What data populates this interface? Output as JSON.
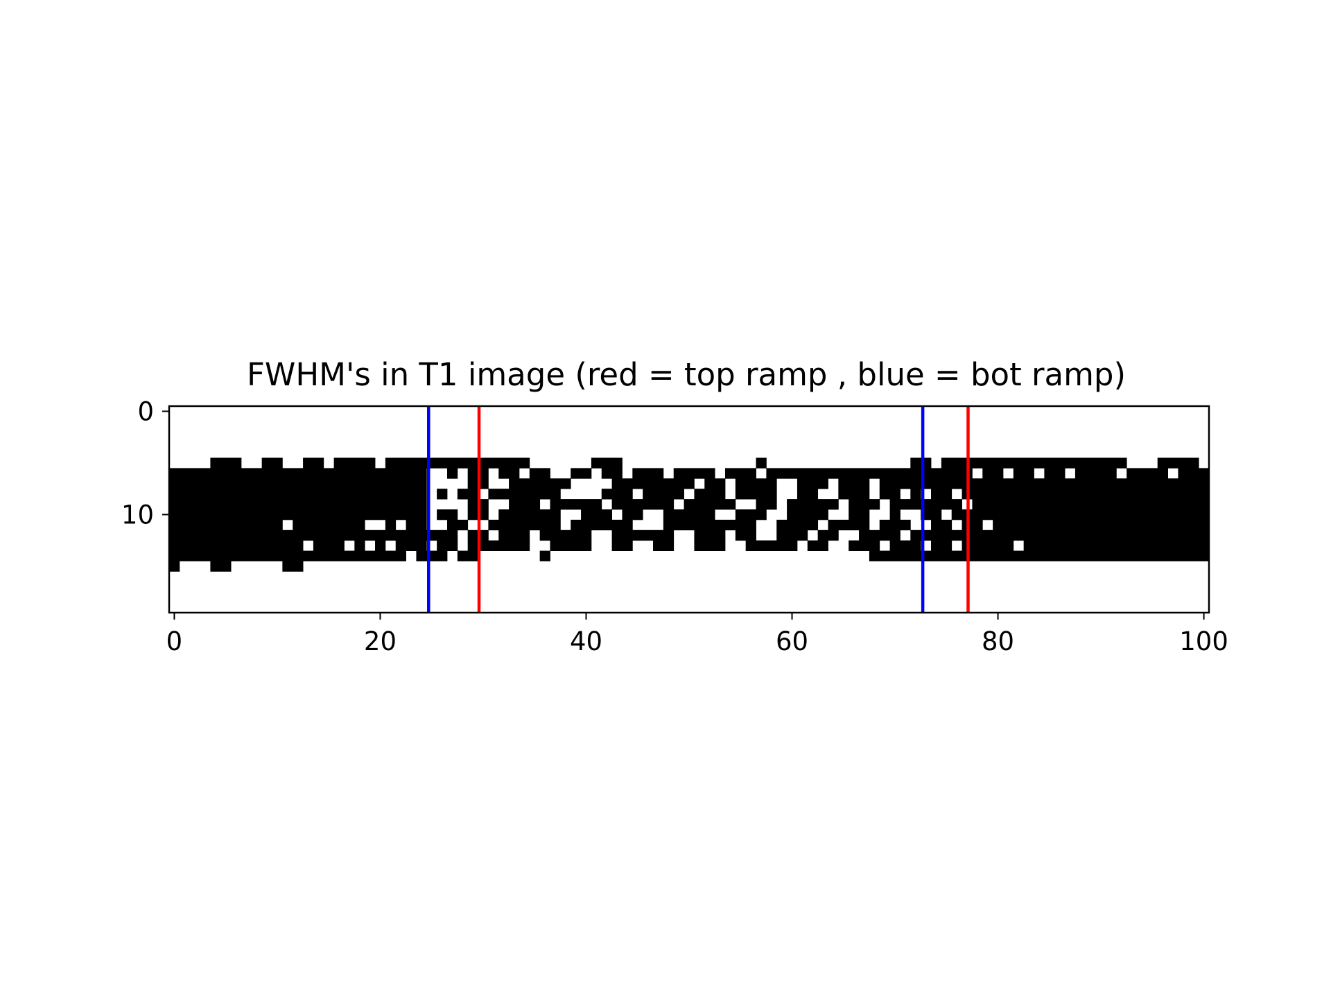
{
  "chart_data": {
    "type": "heatmap",
    "title": "FWHM's in T1 image (red = top ramp , blue = bot ramp)",
    "xlabel": "",
    "ylabel": "",
    "colormap": "binary (black = 1, white = 0)",
    "xlim": [
      -0.5,
      100.5
    ],
    "ylim": [
      19.5,
      -0.5
    ],
    "grid": false,
    "xticks": [
      0,
      20,
      40,
      60,
      80,
      100
    ],
    "yticks": [
      0,
      10
    ],
    "rows": [
      "",
      "",
      "",
      "",
      "",
      "4-6,9-10,13-14,16-19,21-34,41-43,57,72-73,75-92,96-99",
      "0-24,27,29-30,32-33,35-36,39-40,42-43,45-47,49-52,54-56,58-77,79-80,82-83,85-86,88-91,93-96,98-100",
      "0-24,29-30,33-38,43-50,52-53,55-58,61-63,65-67,69-100",
      "0-24,26,28-29,31-37,42-44,46-49,51-53,55-58,61-62,65-67,69-70,72,74-75,77-100",
      "0-24,29-30,33-35,37-41,43-48,50-54,57-58,60-64,66-68,70-76,78-100",
      "0-24,26-27,29-30,32-37,40-42,44-45,48-52,55-57,60-63,66-67,70,73-74,76-100",
      "0-10,12-18,21,23-24,27-28,31-37,39-44,48-56,59-62,64-67,69-71,74-75,77-78,80-100",
      "0-24,25-27,29-30,32-34,36-40,43-48,51-53,55-56,59-61,63-64,67-70,72-100",
      "0-12,14-16,18,20,22-24,26-27,29-34,37-40,43-44,47-48,51-53,56-60,62-63,66-68,70-72,74-75,77-81,83-100",
      "0-22,24-26,28-29,36,68-100",
      "0,4-5,11-12",
      "",
      "",
      "",
      ""
    ],
    "vertical_lines": [
      {
        "x": 24.7,
        "color": "#0000ff",
        "ramp": "bot"
      },
      {
        "x": 29.6,
        "color": "#ff0000",
        "ramp": "top"
      },
      {
        "x": 72.7,
        "color": "#0000ff",
        "ramp": "bot"
      },
      {
        "x": 77.1,
        "color": "#ff0000",
        "ramp": "top"
      }
    ]
  }
}
